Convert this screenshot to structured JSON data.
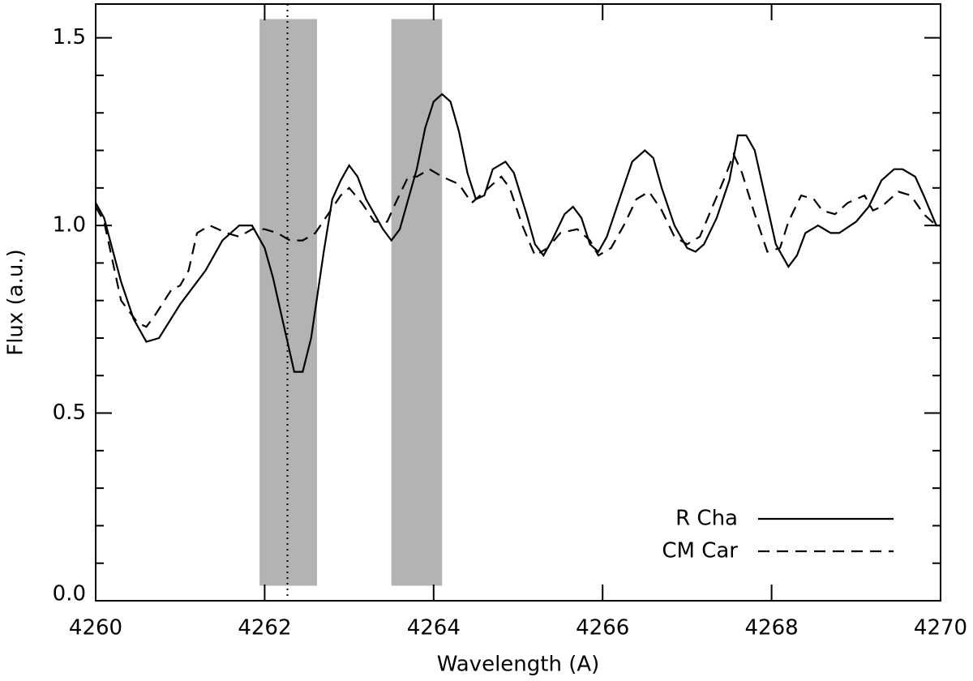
{
  "chart_data": {
    "type": "line",
    "xlabel": "Wavelength (A)",
    "ylabel": "Flux (a.u.)",
    "xlim": [
      4260,
      4270
    ],
    "ylim": [
      0,
      1.59
    ],
    "xticks": [
      4260,
      4262,
      4264,
      4266,
      4268,
      4270
    ],
    "yticks": [
      {
        "value": 0,
        "label": "0.0"
      },
      0.5,
      {
        "value": 1,
        "label": "1.0"
      },
      1.5
    ],
    "yminorticks": [
      0.1,
      0.2,
      0.3,
      0.4,
      0.6,
      0.7,
      0.8,
      0.9,
      1.1,
      1.2,
      1.3,
      1.4
    ],
    "legend": "lower right",
    "shaded_regions": [
      {
        "x": [
          4261.94,
          4262.62
        ],
        "y": [
          0.04,
          1.55
        ],
        "color": "#b3b3b3"
      },
      {
        "x": [
          4263.5,
          4264.1
        ],
        "y": [
          0.04,
          1.55
        ],
        "color": "#b3b3b3"
      }
    ],
    "vline": 4262.27,
    "series": [
      {
        "name": "R Cha",
        "color": "#000000",
        "dash": "solid",
        "x": [
          4260,
          4260.1,
          4260.3,
          4260.45,
          4260.6,
          4260.75,
          4261,
          4261.3,
          4261.5,
          4261.7,
          4261.85,
          4262.0,
          4262.1,
          4262.2,
          4262.3,
          4262.35,
          4262.45,
          4262.55,
          4262.7,
          4262.8,
          4262.9,
          4263.0,
          4263.1,
          4263.2,
          4263.4,
          4263.5,
          4263.6,
          4263.7,
          4263.8,
          4263.9,
          4264.0,
          4264.1,
          4264.2,
          4264.3,
          4264.4,
          4264.5,
          4264.6,
          4264.7,
          4264.85,
          4264.95,
          4265.1,
          4265.2,
          4265.3,
          4265.4,
          4265.55,
          4265.65,
          4265.75,
          4265.85,
          4265.95,
          4266.05,
          4266.2,
          4266.35,
          4266.5,
          4266.6,
          4266.7,
          4266.85,
          4267.0,
          4267.1,
          4267.2,
          4267.35,
          4267.5,
          4267.6,
          4267.7,
          4267.8,
          4267.9,
          4268.05,
          4268.2,
          4268.3,
          4268.4,
          4268.55,
          4268.7,
          4268.8,
          4269.0,
          4269.15,
          4269.3,
          4269.45,
          4269.55,
          4269.7,
          4269.8,
          4269.95,
          4270
        ],
        "values": [
          1.06,
          1.02,
          0.85,
          0.75,
          0.69,
          0.7,
          0.79,
          0.88,
          0.96,
          1.0,
          1.0,
          0.94,
          0.86,
          0.76,
          0.66,
          0.61,
          0.61,
          0.7,
          0.93,
          1.07,
          1.12,
          1.16,
          1.13,
          1.07,
          0.99,
          0.96,
          0.99,
          1.07,
          1.15,
          1.26,
          1.33,
          1.35,
          1.33,
          1.25,
          1.14,
          1.07,
          1.08,
          1.15,
          1.17,
          1.14,
          1.03,
          0.95,
          0.92,
          0.96,
          1.03,
          1.05,
          1.02,
          0.95,
          0.93,
          0.97,
          1.07,
          1.17,
          1.2,
          1.18,
          1.1,
          1.0,
          0.94,
          0.93,
          0.95,
          1.02,
          1.12,
          1.24,
          1.24,
          1.2,
          1.1,
          0.95,
          0.89,
          0.92,
          0.98,
          1.0,
          0.98,
          0.98,
          1.01,
          1.05,
          1.12,
          1.15,
          1.15,
          1.13,
          1.08,
          1.0,
          1.0
        ]
      },
      {
        "name": "CM Car",
        "color": "#000000",
        "dash": "dashed",
        "x": [
          4260,
          4260.1,
          4260.3,
          4260.5,
          4260.6,
          4260.7,
          4260.9,
          4261.0,
          4261.1,
          4261.2,
          4261.35,
          4261.55,
          4261.7,
          4261.85,
          4262.0,
          4262.15,
          4262.3,
          4262.45,
          4262.6,
          4262.75,
          4262.9,
          4263.0,
          4263.15,
          4263.3,
          4263.45,
          4263.55,
          4263.7,
          4263.8,
          4263.95,
          4264.1,
          4264.3,
          4264.45,
          4264.6,
          4264.8,
          4264.9,
          4265.05,
          4265.2,
          4265.35,
          4265.5,
          4265.7,
          4265.85,
          4265.95,
          4266.1,
          4266.25,
          4266.4,
          4266.55,
          4266.7,
          4266.85,
          4267.0,
          4267.15,
          4267.3,
          4267.45,
          4267.55,
          4267.65,
          4267.8,
          4267.95,
          4268.1,
          4268.2,
          4268.35,
          4268.5,
          4268.6,
          4268.75,
          4268.9,
          4269.0,
          4269.1,
          4269.2,
          4269.3,
          4269.5,
          4269.65,
          4269.8,
          4269.95,
          4270
        ],
        "values": [
          1.05,
          1.01,
          0.8,
          0.74,
          0.73,
          0.76,
          0.83,
          0.84,
          0.88,
          0.98,
          1.0,
          0.98,
          0.97,
          0.99,
          0.99,
          0.98,
          0.96,
          0.96,
          0.98,
          1.03,
          1.08,
          1.1,
          1.06,
          1.01,
          1.01,
          1.06,
          1.13,
          1.13,
          1.15,
          1.13,
          1.11,
          1.06,
          1.09,
          1.13,
          1.1,
          1.0,
          0.92,
          0.94,
          0.98,
          0.99,
          0.96,
          0.92,
          0.94,
          1.0,
          1.07,
          1.09,
          1.04,
          0.97,
          0.95,
          0.97,
          1.05,
          1.13,
          1.19,
          1.14,
          1.03,
          0.93,
          0.94,
          1.01,
          1.08,
          1.07,
          1.04,
          1.03,
          1.06,
          1.07,
          1.08,
          1.04,
          1.05,
          1.09,
          1.08,
          1.03,
          1.0,
          1.0
        ]
      }
    ]
  }
}
